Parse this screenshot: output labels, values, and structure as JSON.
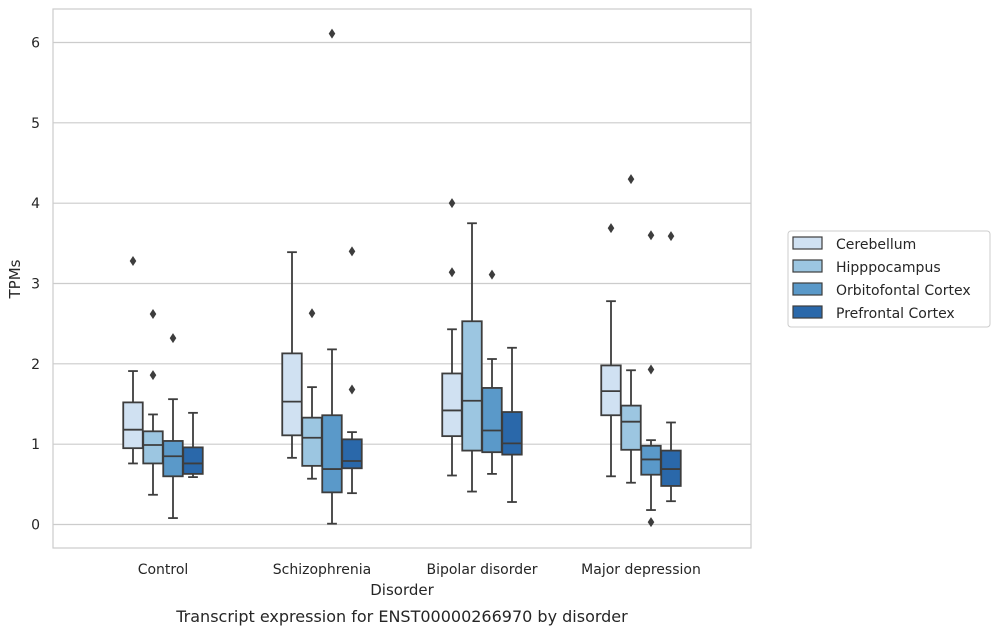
{
  "caption": "Transcript expression for ENST00000266970 by disorder",
  "chart_data": {
    "type": "box",
    "xlabel": "Disorder",
    "ylabel": "TPMs",
    "ylim": [
      -0.3,
      6.4
    ],
    "yticks": [
      0,
      1,
      2,
      3,
      4,
      5,
      6
    ],
    "grid": "horizontal",
    "legend_position": "right",
    "categories": [
      "Control",
      "Schizophrenia",
      "Bipolar disorder",
      "Major depression"
    ],
    "series": [
      {
        "name": "Cerebellum",
        "color": "#d0e1f2",
        "boxes": [
          {
            "whisker_low": 0.76,
            "q1": 0.95,
            "median": 1.18,
            "q3": 1.52,
            "whisker_high": 1.91,
            "outliers": [
              3.28
            ]
          },
          {
            "whisker_low": 0.83,
            "q1": 1.11,
            "median": 1.53,
            "q3": 2.13,
            "whisker_high": 3.39,
            "outliers": []
          },
          {
            "whisker_low": 0.61,
            "q1": 1.1,
            "median": 1.42,
            "q3": 1.88,
            "whisker_high": 2.43,
            "outliers": [
              4.0,
              3.14
            ]
          },
          {
            "whisker_low": 0.6,
            "q1": 1.36,
            "median": 1.66,
            "q3": 1.98,
            "whisker_high": 2.78,
            "outliers": [
              3.69
            ]
          }
        ]
      },
      {
        "name": "Hipppocampus",
        "color": "#9cc6e1",
        "boxes": [
          {
            "whisker_low": 0.37,
            "q1": 0.76,
            "median": 0.99,
            "q3": 1.16,
            "whisker_high": 1.37,
            "outliers": [
              2.62,
              1.86
            ]
          },
          {
            "whisker_low": 0.57,
            "q1": 0.73,
            "median": 1.08,
            "q3": 1.33,
            "whisker_high": 1.71,
            "outliers": [
              2.63
            ]
          },
          {
            "whisker_low": 0.41,
            "q1": 0.92,
            "median": 1.54,
            "q3": 2.53,
            "whisker_high": 3.75,
            "outliers": []
          },
          {
            "whisker_low": 0.52,
            "q1": 0.93,
            "median": 1.28,
            "q3": 1.48,
            "whisker_high": 1.92,
            "outliers": [
              4.3
            ]
          }
        ]
      },
      {
        "name": "Orbitofontal Cortex",
        "color": "#5a99c9",
        "boxes": [
          {
            "whisker_low": 0.08,
            "q1": 0.6,
            "median": 0.85,
            "q3": 1.04,
            "whisker_high": 1.56,
            "outliers": [
              2.32
            ]
          },
          {
            "whisker_low": 0.01,
            "q1": 0.4,
            "median": 0.69,
            "q3": 1.36,
            "whisker_high": 2.18,
            "outliers": [
              6.11
            ]
          },
          {
            "whisker_low": 0.63,
            "q1": 0.9,
            "median": 1.17,
            "q3": 1.7,
            "whisker_high": 2.06,
            "outliers": [
              3.11
            ]
          },
          {
            "whisker_low": 0.18,
            "q1": 0.62,
            "median": 0.81,
            "q3": 0.98,
            "whisker_high": 1.05,
            "outliers": [
              3.6,
              1.93,
              0.03
            ]
          }
        ]
      },
      {
        "name": "Prefrontal Cortex",
        "color": "#2a68aa",
        "boxes": [
          {
            "whisker_low": 0.59,
            "q1": 0.63,
            "median": 0.76,
            "q3": 0.96,
            "whisker_high": 1.39,
            "outliers": []
          },
          {
            "whisker_low": 0.39,
            "q1": 0.7,
            "median": 0.79,
            "q3": 1.06,
            "whisker_high": 1.15,
            "outliers": [
              3.4,
              1.68
            ]
          },
          {
            "whisker_low": 0.28,
            "q1": 0.87,
            "median": 1.01,
            "q3": 1.4,
            "whisker_high": 2.2,
            "outliers": []
          },
          {
            "whisker_low": 0.29,
            "q1": 0.48,
            "median": 0.69,
            "q3": 0.92,
            "whisker_high": 1.27,
            "outliers": [
              3.59
            ]
          }
        ]
      }
    ]
  }
}
